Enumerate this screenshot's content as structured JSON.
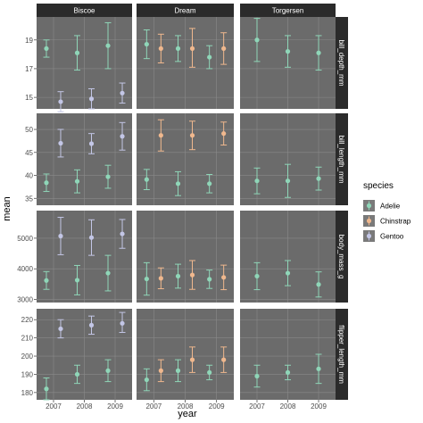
{
  "chart_data": {
    "type": "scatter",
    "geom": "point-with-errorbars",
    "xlabel": "year",
    "ylabel": "mean",
    "x_ticks": [
      "2007",
      "2008",
      "2009"
    ],
    "x_values": [
      2007,
      2008,
      2009
    ],
    "facet_cols": [
      "Biscoe",
      "Dream",
      "Torgersen"
    ],
    "facet_rows": [
      "bill_depth_mm",
      "bill_length_mm",
      "body_mass_g",
      "flipper_length_mm"
    ],
    "legend": {
      "title": "species",
      "position": "right",
      "items": [
        {
          "name": "Adelie",
          "color": "#8fd6b8"
        },
        {
          "name": "Chinstrap",
          "color": "#f0b88e"
        },
        {
          "name": "Gentoo",
          "color": "#c3c6e6"
        }
      ]
    },
    "colors": {
      "panel_bg": "#6b6b6b",
      "strip_bg": "#2b2b2b",
      "strip_text": "#ffffff",
      "grid": "#8a8a8a"
    },
    "rows": [
      {
        "name": "bill_depth_mm",
        "ylim": [
          14.2,
          20.6
        ],
        "y_ticks": [
          15,
          17,
          19
        ],
        "panels": [
          {
            "island": "Biscoe",
            "points": [
              {
                "species": "Adelie",
                "x": 2007,
                "y": 18.4,
                "ymin": 17.8,
                "ymax": 19.0
              },
              {
                "species": "Adelie",
                "x": 2008,
                "y": 18.1,
                "ymin": 16.9,
                "ymax": 19.3
              },
              {
                "species": "Adelie",
                "x": 2009,
                "y": 18.6,
                "ymin": 17.0,
                "ymax": 20.2
              },
              {
                "species": "Gentoo",
                "x": 2007,
                "y": 14.7,
                "ymin": 14.0,
                "ymax": 15.4
              },
              {
                "species": "Gentoo",
                "x": 2008,
                "y": 14.9,
                "ymin": 14.2,
                "ymax": 15.6
              },
              {
                "species": "Gentoo",
                "x": 2009,
                "y": 15.3,
                "ymin": 14.6,
                "ymax": 16.0
              }
            ]
          },
          {
            "island": "Dream",
            "points": [
              {
                "species": "Adelie",
                "x": 2007,
                "y": 18.7,
                "ymin": 17.7,
                "ymax": 19.7
              },
              {
                "species": "Chinstrap",
                "x": 2007,
                "y": 18.4,
                "ymin": 17.4,
                "ymax": 19.4
              },
              {
                "species": "Adelie",
                "x": 2008,
                "y": 18.4,
                "ymin": 17.5,
                "ymax": 19.3
              },
              {
                "species": "Chinstrap",
                "x": 2008,
                "y": 18.4,
                "ymin": 17.1,
                "ymax": 19.8
              },
              {
                "species": "Adelie",
                "x": 2009,
                "y": 17.8,
                "ymin": 17.0,
                "ymax": 18.6
              },
              {
                "species": "Chinstrap",
                "x": 2009,
                "y": 18.4,
                "ymin": 17.3,
                "ymax": 19.5
              }
            ]
          },
          {
            "island": "Torgersen",
            "points": [
              {
                "species": "Adelie",
                "x": 2007,
                "y": 19.0,
                "ymin": 17.5,
                "ymax": 20.5
              },
              {
                "species": "Adelie",
                "x": 2008,
                "y": 18.2,
                "ymin": 17.1,
                "ymax": 19.3
              },
              {
                "species": "Adelie",
                "x": 2009,
                "y": 18.1,
                "ymin": 16.9,
                "ymax": 19.3
              }
            ]
          }
        ]
      },
      {
        "name": "bill_length_mm",
        "ylim": [
          33.5,
          53.5
        ],
        "y_ticks": [
          35,
          40,
          45,
          50
        ],
        "panels": [
          {
            "island": "Biscoe",
            "points": [
              {
                "species": "Adelie",
                "x": 2007,
                "y": 38.4,
                "ymin": 36.5,
                "ymax": 40.3
              },
              {
                "species": "Adelie",
                "x": 2008,
                "y": 38.7,
                "ymin": 36.2,
                "ymax": 41.2
              },
              {
                "species": "Adelie",
                "x": 2009,
                "y": 39.7,
                "ymin": 37.2,
                "ymax": 42.2
              },
              {
                "species": "Gentoo",
                "x": 2007,
                "y": 47.0,
                "ymin": 44.0,
                "ymax": 50.0
              },
              {
                "species": "Gentoo",
                "x": 2008,
                "y": 46.9,
                "ymin": 44.7,
                "ymax": 49.1
              },
              {
                "species": "Gentoo",
                "x": 2009,
                "y": 48.5,
                "ymin": 45.5,
                "ymax": 51.5
              }
            ]
          },
          {
            "island": "Dream",
            "points": [
              {
                "species": "Adelie",
                "x": 2007,
                "y": 39.1,
                "ymin": 36.9,
                "ymax": 41.3
              },
              {
                "species": "Chinstrap",
                "x": 2007,
                "y": 48.7,
                "ymin": 45.3,
                "ymax": 52.1
              },
              {
                "species": "Adelie",
                "x": 2008,
                "y": 38.2,
                "ymin": 35.6,
                "ymax": 40.8
              },
              {
                "species": "Chinstrap",
                "x": 2008,
                "y": 48.7,
                "ymin": 45.6,
                "ymax": 51.8
              },
              {
                "species": "Adelie",
                "x": 2009,
                "y": 38.2,
                "ymin": 36.2,
                "ymax": 40.2
              },
              {
                "species": "Chinstrap",
                "x": 2009,
                "y": 49.1,
                "ymin": 46.6,
                "ymax": 51.6
              }
            ]
          },
          {
            "island": "Torgersen",
            "points": [
              {
                "species": "Adelie",
                "x": 2007,
                "y": 38.8,
                "ymin": 36.0,
                "ymax": 41.6
              },
              {
                "species": "Adelie",
                "x": 2008,
                "y": 38.8,
                "ymin": 35.2,
                "ymax": 42.4
              },
              {
                "species": "Adelie",
                "x": 2009,
                "y": 39.3,
                "ymin": 36.8,
                "ymax": 41.8
              }
            ]
          }
        ]
      },
      {
        "name": "body_mass_g",
        "ylim": [
          2900,
          5900
        ],
        "y_ticks": [
          3000,
          4000,
          5000
        ],
        "panels": [
          {
            "island": "Biscoe",
            "points": [
              {
                "species": "Adelie",
                "x": 2007,
                "y": 3620,
                "ymin": 3330,
                "ymax": 3910
              },
              {
                "species": "Adelie",
                "x": 2008,
                "y": 3630,
                "ymin": 3150,
                "ymax": 4110
              },
              {
                "species": "Adelie",
                "x": 2009,
                "y": 3860,
                "ymin": 3280,
                "ymax": 4440
              },
              {
                "species": "Gentoo",
                "x": 2007,
                "y": 5070,
                "ymin": 4460,
                "ymax": 5680
              },
              {
                "species": "Gentoo",
                "x": 2008,
                "y": 5020,
                "ymin": 4440,
                "ymax": 5600
              },
              {
                "species": "Gentoo",
                "x": 2009,
                "y": 5140,
                "ymin": 4670,
                "ymax": 5610
              }
            ]
          },
          {
            "island": "Dream",
            "points": [
              {
                "species": "Adelie",
                "x": 2007,
                "y": 3670,
                "ymin": 3140,
                "ymax": 4200
              },
              {
                "species": "Chinstrap",
                "x": 2007,
                "y": 3690,
                "ymin": 3350,
                "ymax": 4030
              },
              {
                "species": "Adelie",
                "x": 2008,
                "y": 3760,
                "ymin": 3370,
                "ymax": 4150
              },
              {
                "species": "Chinstrap",
                "x": 2008,
                "y": 3800,
                "ymin": 3330,
                "ymax": 4270
              },
              {
                "species": "Adelie",
                "x": 2009,
                "y": 3660,
                "ymin": 3360,
                "ymax": 3960
              },
              {
                "species": "Chinstrap",
                "x": 2009,
                "y": 3720,
                "ymin": 3320,
                "ymax": 4120
              }
            ]
          },
          {
            "island": "Torgersen",
            "points": [
              {
                "species": "Adelie",
                "x": 2007,
                "y": 3760,
                "ymin": 3320,
                "ymax": 4200
              },
              {
                "species": "Adelie",
                "x": 2008,
                "y": 3860,
                "ymin": 3450,
                "ymax": 4270
              },
              {
                "species": "Adelie",
                "x": 2009,
                "y": 3490,
                "ymin": 3080,
                "ymax": 3900
              }
            ]
          }
        ]
      },
      {
        "name": "flipper_length_mm",
        "ylim": [
          176,
          226
        ],
        "y_ticks": [
          180,
          190,
          200,
          210,
          220
        ],
        "panels": [
          {
            "island": "Biscoe",
            "points": [
              {
                "species": "Adelie",
                "x": 2007,
                "y": 182,
                "ymin": 176,
                "ymax": 188
              },
              {
                "species": "Adelie",
                "x": 2008,
                "y": 190,
                "ymin": 185,
                "ymax": 195
              },
              {
                "species": "Adelie",
                "x": 2009,
                "y": 192,
                "ymin": 186,
                "ymax": 198
              },
              {
                "species": "Gentoo",
                "x": 2007,
                "y": 215,
                "ymin": 210,
                "ymax": 220
              },
              {
                "species": "Gentoo",
                "x": 2008,
                "y": 217,
                "ymin": 212,
                "ymax": 222
              },
              {
                "species": "Gentoo",
                "x": 2009,
                "y": 218,
                "ymin": 213,
                "ymax": 224
              }
            ]
          },
          {
            "island": "Dream",
            "points": [
              {
                "species": "Adelie",
                "x": 2007,
                "y": 187,
                "ymin": 181,
                "ymax": 193
              },
              {
                "species": "Chinstrap",
                "x": 2007,
                "y": 192,
                "ymin": 186,
                "ymax": 198
              },
              {
                "species": "Adelie",
                "x": 2008,
                "y": 192,
                "ymin": 186,
                "ymax": 198
              },
              {
                "species": "Chinstrap",
                "x": 2008,
                "y": 198,
                "ymin": 191,
                "ymax": 205
              },
              {
                "species": "Adelie",
                "x": 2009,
                "y": 191,
                "ymin": 187,
                "ymax": 195
              },
              {
                "species": "Chinstrap",
                "x": 2009,
                "y": 198,
                "ymin": 191,
                "ymax": 205
              }
            ]
          },
          {
            "island": "Torgersen",
            "points": [
              {
                "species": "Adelie",
                "x": 2007,
                "y": 189,
                "ymin": 183,
                "ymax": 195
              },
              {
                "species": "Adelie",
                "x": 2008,
                "y": 191,
                "ymin": 187,
                "ymax": 195
              },
              {
                "species": "Adelie",
                "x": 2009,
                "y": 193,
                "ymin": 185,
                "ymax": 201
              }
            ]
          }
        ]
      }
    ]
  }
}
